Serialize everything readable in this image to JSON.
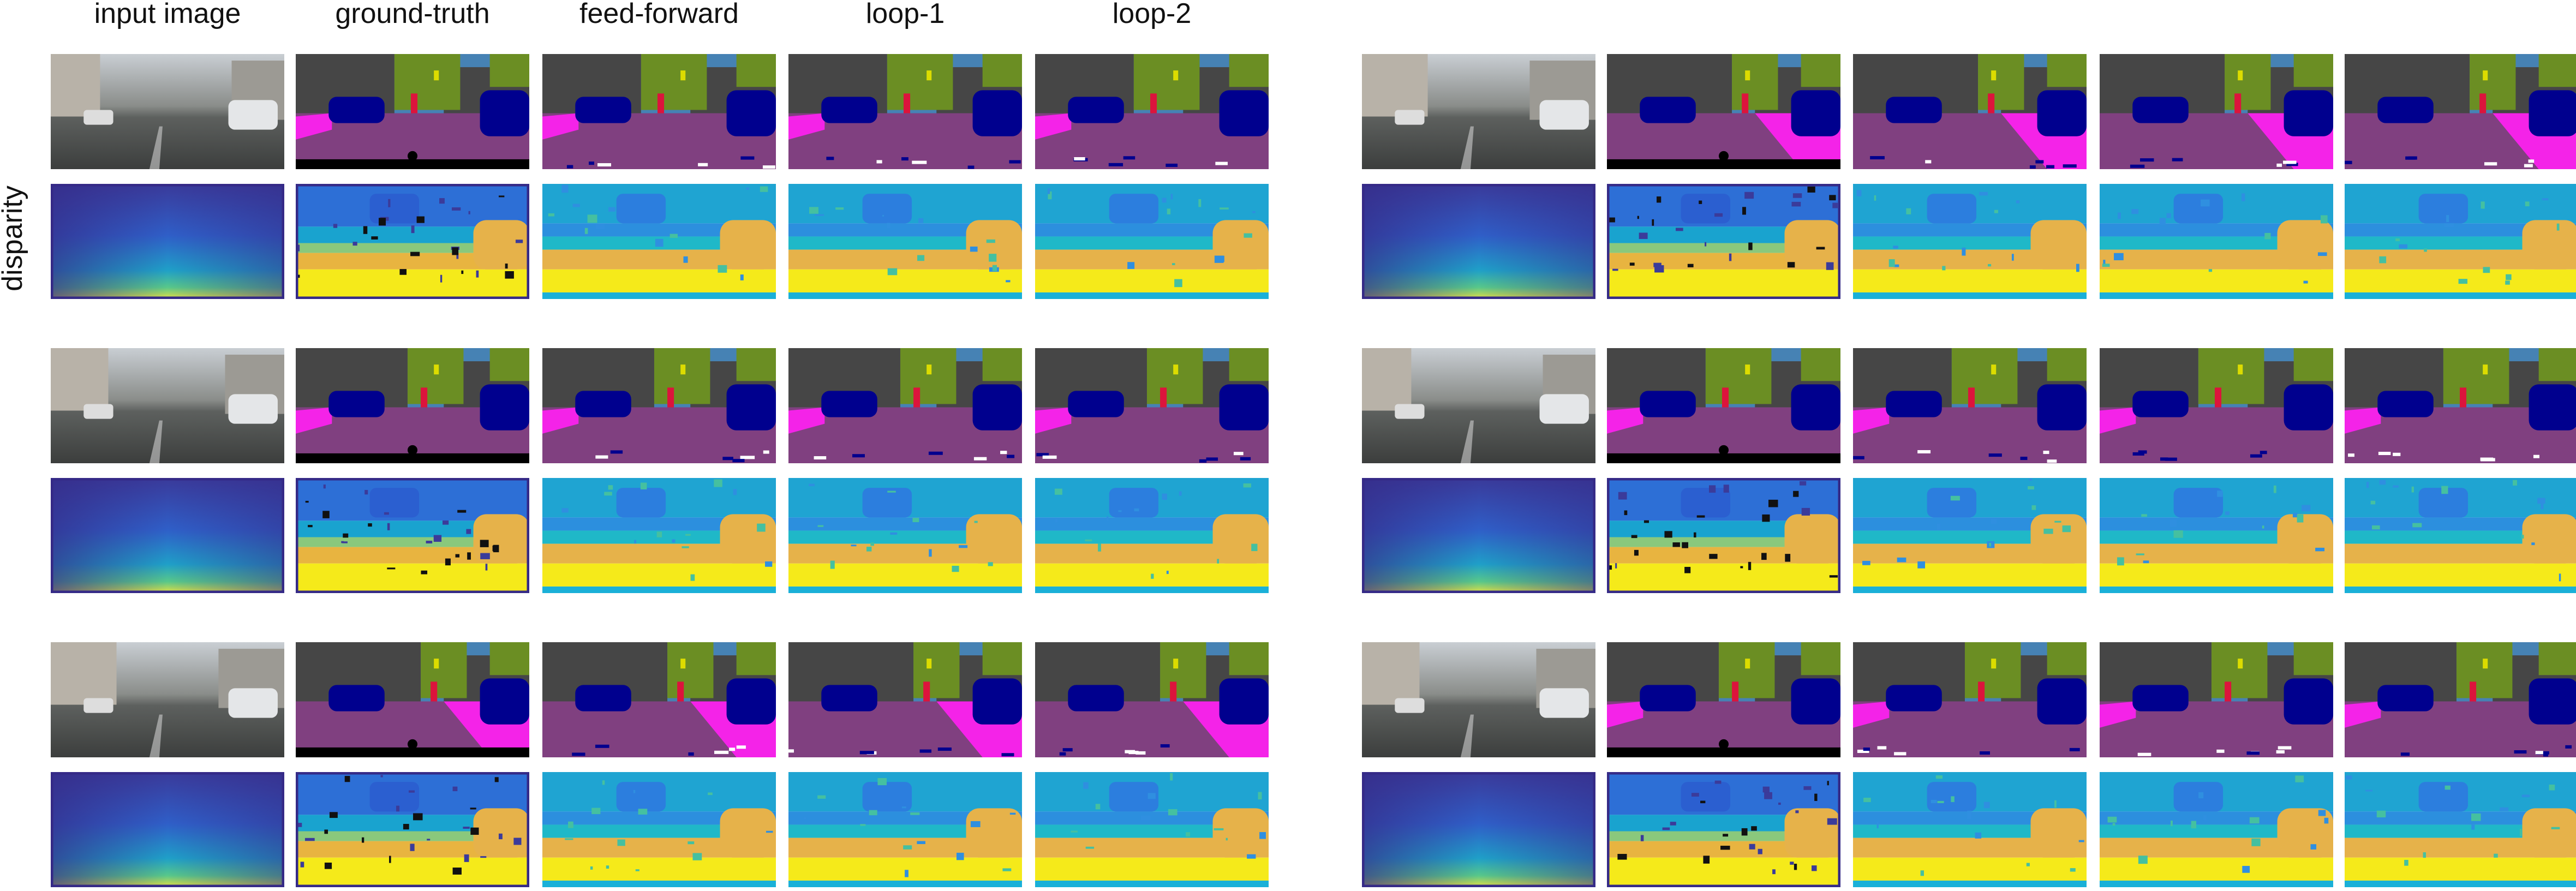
{
  "header": {
    "columns": [
      "input image",
      "ground-truth",
      "feed-forward",
      "loop-1",
      "loop-2"
    ],
    "row_label": "disparity"
  }
}
